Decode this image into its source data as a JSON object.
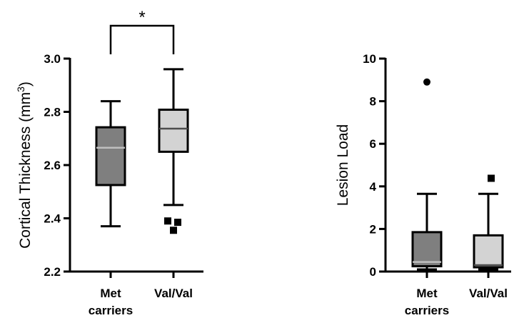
{
  "chart_data": [
    {
      "type": "box",
      "ylabel": "Cortical Thickness (mm",
      "ylabel_sup": "3",
      "ylabel_close": ")",
      "ylim": [
        2.2,
        3.0
      ],
      "yticks": [
        "2.2",
        "2.4",
        "2.6",
        "2.8",
        "3.0"
      ],
      "categories": [
        {
          "line1": "Met",
          "line2": "carriers"
        },
        {
          "line1": "Val/Val",
          "line2": ""
        }
      ],
      "boxes": [
        {
          "category": "Met carriers",
          "min": 2.37,
          "q1": 2.525,
          "median": 2.665,
          "q3": 2.742,
          "max": 2.84,
          "fill": "#7f7f7f",
          "outliers": []
        },
        {
          "category": "Val/Val",
          "min": 2.45,
          "q1": 2.65,
          "median": 2.737,
          "q3": 2.808,
          "max": 2.96,
          "fill": "#d3d3d3",
          "outliers": [
            [
              -0.2,
              2.39
            ],
            [
              0.15,
              2.385
            ],
            [
              0.0,
              2.355
            ]
          ]
        }
      ],
      "significance": {
        "between": [
          0,
          1
        ],
        "label": "*"
      }
    },
    {
      "type": "box",
      "ylabel": "Lesion Load",
      "ylim": [
        0,
        10
      ],
      "yticks": [
        "0",
        "2",
        "4",
        "6",
        "8",
        "10"
      ],
      "categories": [
        {
          "line1": "Met",
          "line2": "carriers"
        },
        {
          "line1": "Val/Val",
          "line2": ""
        }
      ],
      "boxes": [
        {
          "category": "Met carriers",
          "min": 0.1,
          "q1": 0.25,
          "median": 0.45,
          "q3": 1.85,
          "max": 3.65,
          "fill": "#7f7f7f",
          "outliers": [
            [
              0,
              8.9
            ]
          ],
          "outlier_shape": "circle"
        },
        {
          "category": "Val/Val",
          "min": 0.1,
          "q1": 0.2,
          "median": 0.3,
          "q3": 1.7,
          "max": 3.65,
          "fill": "#d3d3d3",
          "outliers": [
            [
              0.1,
              4.38
            ]
          ],
          "outlier_shape": "square"
        }
      ]
    }
  ]
}
